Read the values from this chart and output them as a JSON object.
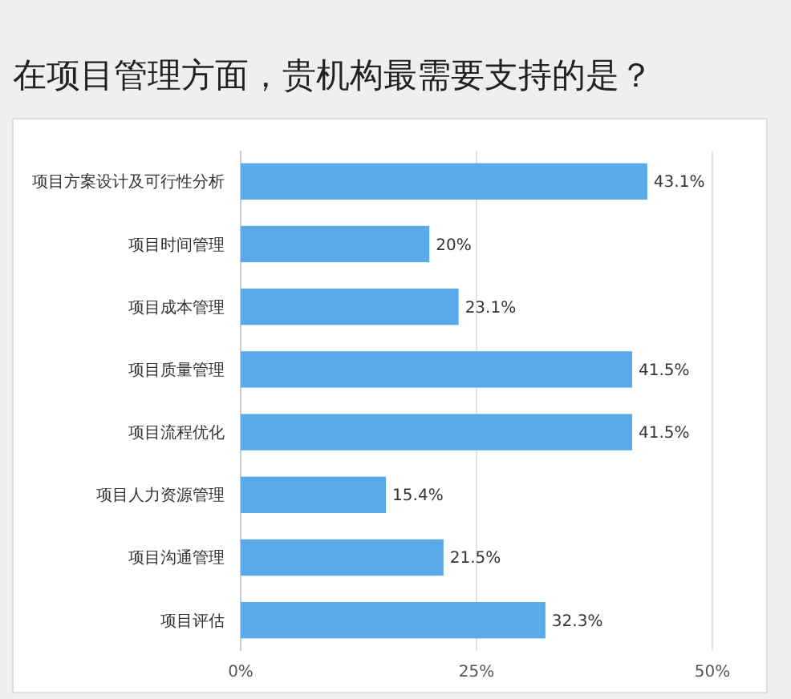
{
  "chart_data": {
    "type": "bar",
    "orientation": "horizontal",
    "title": "在项目管理方面，贵机构最需要支持的是？",
    "categories": [
      "项目方案设计及可行性分析",
      "项目时间管理",
      "项目成本管理",
      "项目质量管理",
      "项目流程优化",
      "项目人力资源管理",
      "项目沟通管理",
      "项目评估"
    ],
    "values": [
      43.1,
      20,
      23.1,
      41.5,
      41.5,
      15.4,
      21.5,
      32.3
    ],
    "value_labels": [
      "43.1%",
      "20%",
      "23.1%",
      "41.5%",
      "41.5%",
      "15.4%",
      "21.5%",
      "32.3%"
    ],
    "color": "#5aaaea",
    "xlim": [
      0,
      50
    ],
    "xticks": [
      {
        "value": 0,
        "label": "0%"
      },
      {
        "value": 25,
        "label": "25%"
      },
      {
        "value": 50,
        "label": "50%"
      }
    ],
    "grid": "x"
  }
}
